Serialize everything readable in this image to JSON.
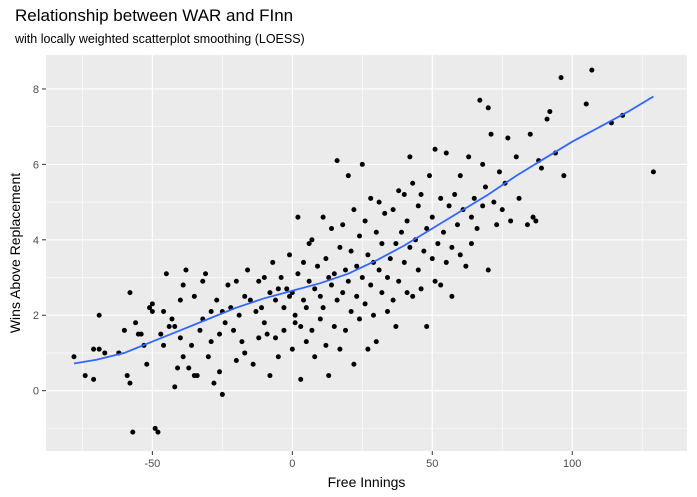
{
  "chart_data": {
    "type": "scatter",
    "title": "Relationship between WAR and FInn",
    "subtitle": "with locally weighted scatterplot smoothing (LOESS)",
    "xlabel": "Free Innings",
    "ylabel": "Wins Above Replacement",
    "xlim": [
      -88,
      141
    ],
    "ylim": [
      -1.6,
      8.9
    ],
    "x_ticks": [
      -50,
      0,
      50,
      100
    ],
    "y_ticks": [
      0,
      2,
      4,
      6,
      8
    ],
    "grid": true,
    "panel_color": "#ebebeb",
    "point_color": "#000000",
    "smooth_color": "#3366ff",
    "points": [
      [
        -78,
        0.9
      ],
      [
        -74,
        0.4
      ],
      [
        -71,
        0.3
      ],
      [
        -71,
        1.1
      ],
      [
        -69,
        2.0
      ],
      [
        -69,
        1.1
      ],
      [
        -67,
        1.0
      ],
      [
        -62,
        1.0
      ],
      [
        -60,
        1.6
      ],
      [
        -59,
        0.4
      ],
      [
        -58,
        0.2
      ],
      [
        -58,
        2.6
      ],
      [
        -57,
        -1.1
      ],
      [
        -56,
        1.8
      ],
      [
        -55,
        1.5
      ],
      [
        -54,
        1.5
      ],
      [
        -53,
        1.2
      ],
      [
        -52,
        0.7
      ],
      [
        -51,
        2.2
      ],
      [
        -50,
        2.1
      ],
      [
        -50,
        2.3
      ],
      [
        -49,
        -1.0
      ],
      [
        -48,
        -1.1
      ],
      [
        -47,
        1.5
      ],
      [
        -46,
        1.2
      ],
      [
        -46,
        2.1
      ],
      [
        -45,
        3.1
      ],
      [
        -44,
        1.7
      ],
      [
        -43,
        1.9
      ],
      [
        -42,
        0.1
      ],
      [
        -42,
        1.7
      ],
      [
        -41,
        0.6
      ],
      [
        -40,
        1.4
      ],
      [
        -40,
        2.4
      ],
      [
        -39,
        0.9
      ],
      [
        -39,
        2.8
      ],
      [
        -38,
        3.2
      ],
      [
        -37,
        0.6
      ],
      [
        -36,
        1.2
      ],
      [
        -35,
        2.5
      ],
      [
        -35,
        0.4
      ],
      [
        -34,
        0.4
      ],
      [
        -33,
        1.6
      ],
      [
        -32,
        1.9
      ],
      [
        -32,
        2.9
      ],
      [
        -31,
        3.1
      ],
      [
        -30,
        0.9
      ],
      [
        -29,
        2.1
      ],
      [
        -29,
        1.3
      ],
      [
        -28,
        0.2
      ],
      [
        -27,
        2.4
      ],
      [
        -26,
        1.5
      ],
      [
        -26,
        0.5
      ],
      [
        -25,
        2.1
      ],
      [
        -25,
        -0.1
      ],
      [
        -24,
        1.8
      ],
      [
        -23,
        2.8
      ],
      [
        -22,
        2.2
      ],
      [
        -21,
        1.6
      ],
      [
        -20,
        2.9
      ],
      [
        -20,
        0.8
      ],
      [
        -19,
        2.0
      ],
      [
        -18,
        1.3
      ],
      [
        -17,
        2.5
      ],
      [
        -17,
        1.0
      ],
      [
        -16,
        3.2
      ],
      [
        -15,
        2.4
      ],
      [
        -14,
        0.7
      ],
      [
        -13,
        2.1
      ],
      [
        -12,
        1.4
      ],
      [
        -12,
        2.9
      ],
      [
        -11,
        2.2
      ],
      [
        -10,
        1.8
      ],
      [
        -10,
        3.0
      ],
      [
        -9,
        1.5
      ],
      [
        -8,
        0.4
      ],
      [
        -8,
        2.6
      ],
      [
        -7,
        3.4
      ],
      [
        -6,
        1.4
      ],
      [
        -6,
        2.4
      ],
      [
        -5,
        0.9
      ],
      [
        -5,
        2.7
      ],
      [
        -4,
        3.0
      ],
      [
        -3,
        1.6
      ],
      [
        -3,
        2.2
      ],
      [
        -2,
        2.7
      ],
      [
        -1,
        2.5
      ],
      [
        -1,
        3.6
      ],
      [
        0,
        1.1
      ],
      [
        0,
        2.6
      ],
      [
        1,
        1.8
      ],
      [
        1,
        2.0
      ],
      [
        2,
        3.1
      ],
      [
        2,
        4.6
      ],
      [
        3,
        0.3
      ],
      [
        3,
        1.7
      ],
      [
        4,
        2.4
      ],
      [
        4,
        3.4
      ],
      [
        5,
        2.2
      ],
      [
        5,
        1.3
      ],
      [
        6,
        3.9
      ],
      [
        6,
        2.9
      ],
      [
        7,
        1.6
      ],
      [
        7,
        4.0
      ],
      [
        8,
        2.7
      ],
      [
        8,
        0.9
      ],
      [
        9,
        3.3
      ],
      [
        10,
        2.5
      ],
      [
        10,
        1.9
      ],
      [
        11,
        4.6
      ],
      [
        11,
        2.2
      ],
      [
        12,
        3.5
      ],
      [
        12,
        1.2
      ],
      [
        13,
        3.0
      ],
      [
        13,
        0.4
      ],
      [
        14,
        2.8
      ],
      [
        14,
        4.3
      ],
      [
        15,
        1.7
      ],
      [
        15,
        3.1
      ],
      [
        16,
        2.4
      ],
      [
        16,
        6.1
      ],
      [
        17,
        3.8
      ],
      [
        17,
        1.1
      ],
      [
        18,
        2.6
      ],
      [
        18,
        4.4
      ],
      [
        19,
        3.2
      ],
      [
        19,
        1.6
      ],
      [
        20,
        2.9
      ],
      [
        20,
        5.7
      ],
      [
        21,
        2.1
      ],
      [
        21,
        3.7
      ],
      [
        22,
        4.8
      ],
      [
        22,
        0.7
      ],
      [
        23,
        2.5
      ],
      [
        23,
        3.3
      ],
      [
        24,
        4.1
      ],
      [
        24,
        1.9
      ],
      [
        25,
        6.0
      ],
      [
        25,
        3.0
      ],
      [
        26,
        2.3
      ],
      [
        26,
        4.5
      ],
      [
        27,
        1.1
      ],
      [
        27,
        3.6
      ],
      [
        28,
        5.1
      ],
      [
        28,
        2.8
      ],
      [
        29,
        3.4
      ],
      [
        29,
        2.0
      ],
      [
        30,
        4.2
      ],
      [
        30,
        1.3
      ],
      [
        31,
        3.2
      ],
      [
        31,
        5.0
      ],
      [
        32,
        2.6
      ],
      [
        32,
        3.9
      ],
      [
        33,
        4.7
      ],
      [
        34,
        3.0
      ],
      [
        34,
        2.1
      ],
      [
        35,
        3.5
      ],
      [
        36,
        4.8
      ],
      [
        36,
        2.4
      ],
      [
        37,
        3.9
      ],
      [
        37,
        1.7
      ],
      [
        38,
        5.3
      ],
      [
        38,
        2.9
      ],
      [
        39,
        4.2
      ],
      [
        40,
        3.4
      ],
      [
        40,
        5.2
      ],
      [
        41,
        2.6
      ],
      [
        41,
        4.5
      ],
      [
        42,
        3.8
      ],
      [
        42,
        6.2
      ],
      [
        43,
        5.5
      ],
      [
        43,
        2.5
      ],
      [
        44,
        4.0
      ],
      [
        45,
        3.2
      ],
      [
        45,
        4.9
      ],
      [
        46,
        5.2
      ],
      [
        46,
        2.7
      ],
      [
        47,
        3.7
      ],
      [
        48,
        4.3
      ],
      [
        48,
        1.7
      ],
      [
        49,
        5.7
      ],
      [
        50,
        3.5
      ],
      [
        50,
        4.6
      ],
      [
        51,
        6.4
      ],
      [
        51,
        2.9
      ],
      [
        52,
        3.9
      ],
      [
        53,
        5.1
      ],
      [
        53,
        2.8
      ],
      [
        54,
        4.2
      ],
      [
        55,
        3.4
      ],
      [
        55,
        6.3
      ],
      [
        56,
        4.9
      ],
      [
        57,
        3.8
      ],
      [
        57,
        2.5
      ],
      [
        58,
        5.2
      ],
      [
        59,
        4.4
      ],
      [
        60,
        3.6
      ],
      [
        60,
        5.7
      ],
      [
        61,
        4.8
      ],
      [
        62,
        3.3
      ],
      [
        63,
        6.2
      ],
      [
        64,
        4.6
      ],
      [
        64,
        3.9
      ],
      [
        65,
        5.1
      ],
      [
        66,
        4.3
      ],
      [
        67,
        7.7
      ],
      [
        68,
        4.9
      ],
      [
        68,
        6.0
      ],
      [
        69,
        5.4
      ],
      [
        70,
        7.5
      ],
      [
        70,
        3.2
      ],
      [
        71,
        6.8
      ],
      [
        72,
        5.0
      ],
      [
        73,
        4.4
      ],
      [
        74,
        5.8
      ],
      [
        75,
        4.8
      ],
      [
        76,
        5.5
      ],
      [
        77,
        6.7
      ],
      [
        78,
        4.5
      ],
      [
        80,
        6.2
      ],
      [
        81,
        5.1
      ],
      [
        84,
        4.4
      ],
      [
        85,
        6.8
      ],
      [
        86,
        4.6
      ],
      [
        87,
        4.5
      ],
      [
        88,
        6.1
      ],
      [
        89,
        5.9
      ],
      [
        91,
        7.2
      ],
      [
        92,
        7.4
      ],
      [
        94,
        6.3
      ],
      [
        96,
        8.3
      ],
      [
        97,
        5.7
      ],
      [
        105,
        7.6
      ],
      [
        107,
        8.5
      ],
      [
        114,
        7.1
      ],
      [
        118,
        7.3
      ],
      [
        129,
        5.8
      ]
    ],
    "smooth": [
      [
        -78,
        0.72
      ],
      [
        -70,
        0.82
      ],
      [
        -60,
        1.0
      ],
      [
        -50,
        1.3
      ],
      [
        -40,
        1.6
      ],
      [
        -30,
        1.9
      ],
      [
        -20,
        2.2
      ],
      [
        -10,
        2.45
      ],
      [
        0,
        2.65
      ],
      [
        10,
        2.85
      ],
      [
        20,
        3.1
      ],
      [
        30,
        3.45
      ],
      [
        40,
        3.85
      ],
      [
        50,
        4.3
      ],
      [
        60,
        4.75
      ],
      [
        70,
        5.2
      ],
      [
        80,
        5.7
      ],
      [
        90,
        6.15
      ],
      [
        100,
        6.6
      ],
      [
        110,
        7.0
      ],
      [
        120,
        7.4
      ],
      [
        129,
        7.8
      ]
    ]
  }
}
